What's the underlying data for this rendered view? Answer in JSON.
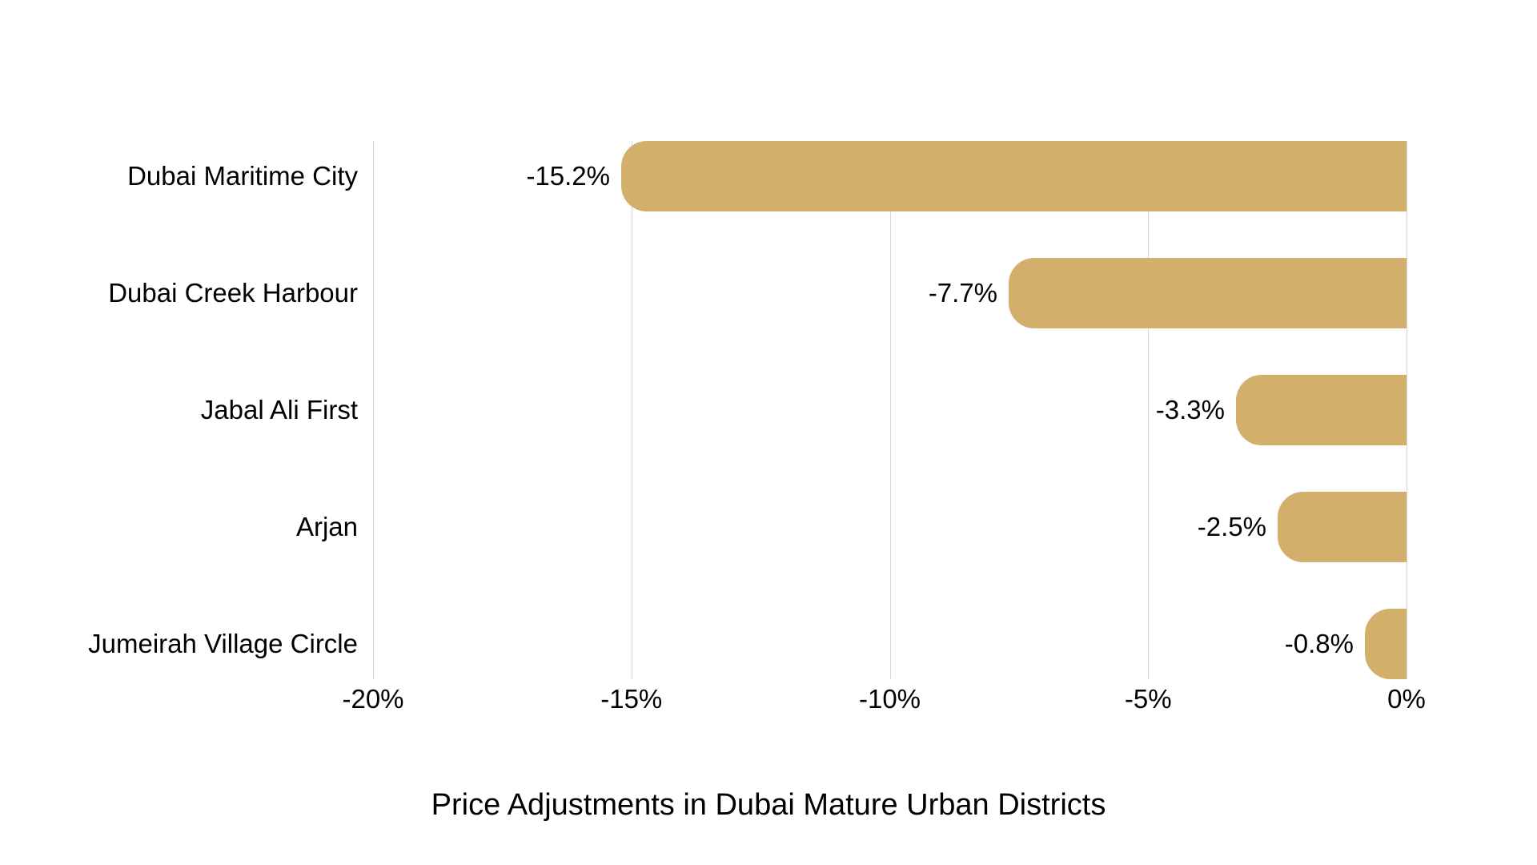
{
  "chart_data": {
    "type": "bar",
    "orientation": "horizontal",
    "title": "Price Adjustments in Dubai Mature Urban Districts",
    "categories": [
      "Dubai Maritime City",
      "Dubai Creek Harbour",
      "Jabal Ali First",
      "Arjan",
      "Jumeirah Village Circle"
    ],
    "values": [
      -15.2,
      -7.7,
      -3.3,
      -2.5,
      -0.8
    ],
    "value_labels": [
      "-15.2%",
      "-7.7%",
      "-3.3%",
      "-2.5%",
      "-0.8%"
    ],
    "xlim": [
      -20,
      0
    ],
    "x_ticks": [
      -20,
      -15,
      -10,
      -5,
      0
    ],
    "x_tick_labels": [
      "-20%",
      "-15%",
      "-10%",
      "-5%",
      "0%"
    ],
    "grid": "vertical",
    "legend": "none",
    "bar_color": "#D3AF6C",
    "gridline_color": "#D6D6D6",
    "text_color": "#000000",
    "background_color": "#FFFFFF"
  }
}
